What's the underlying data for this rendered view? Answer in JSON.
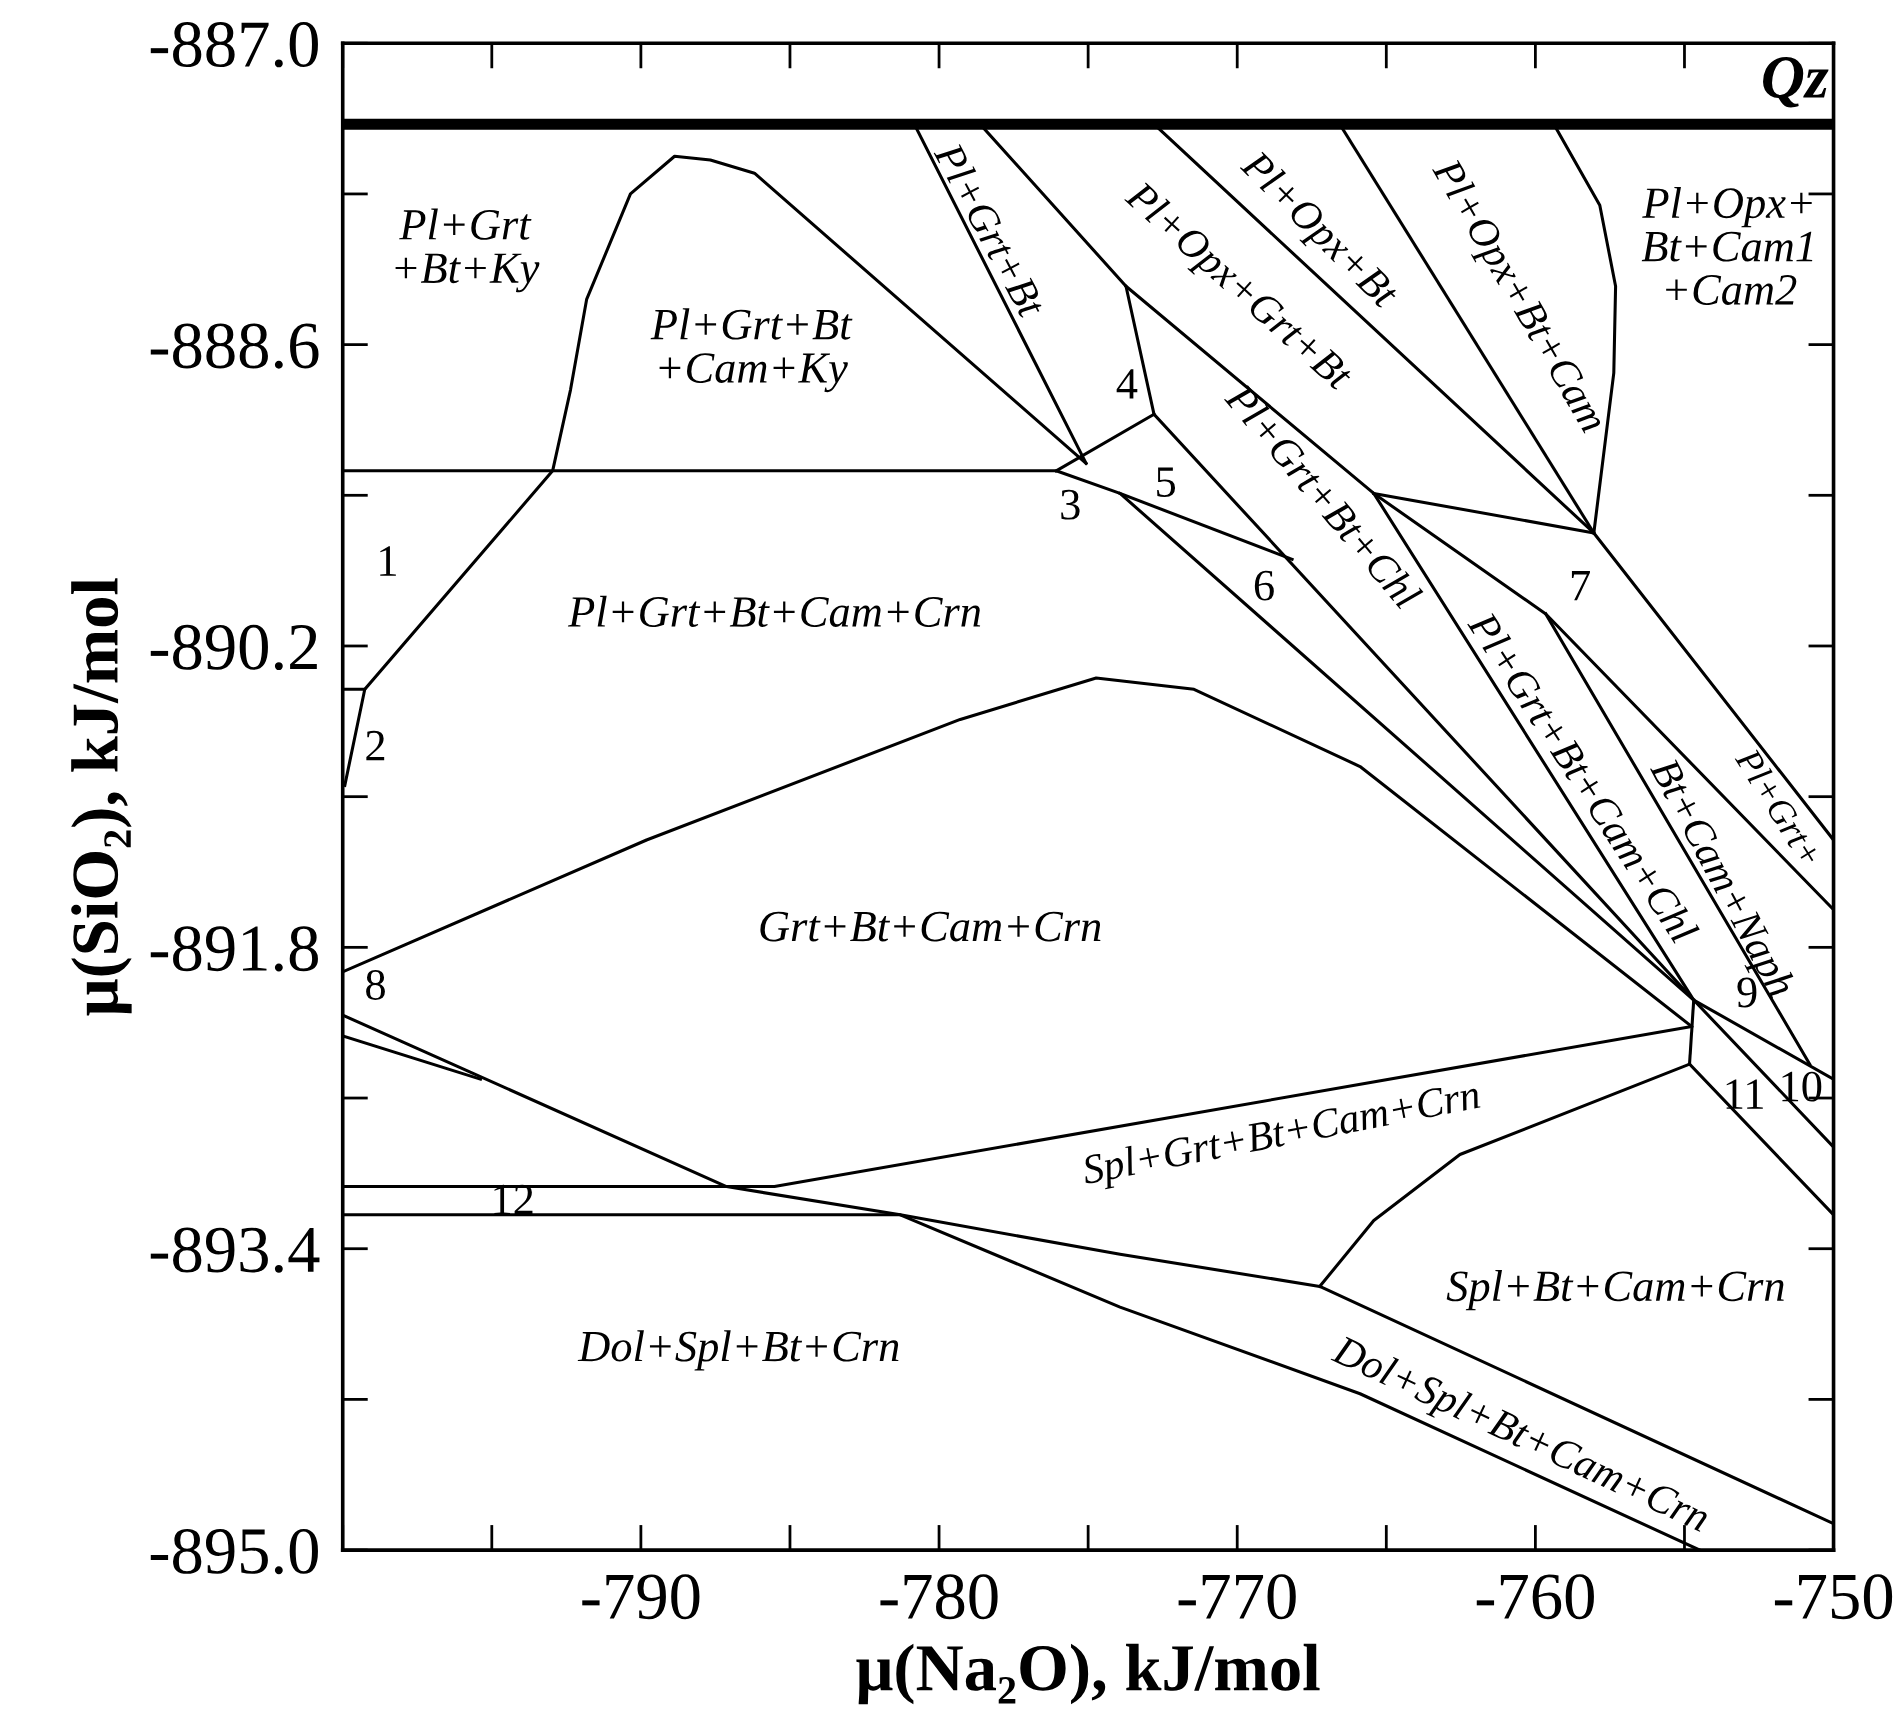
{
  "chart_data": {
    "type": "line",
    "xlabel": "μ(Na₂O), kJ/mol",
    "ylabel": "μ(SiO₂), kJ/mol",
    "xlim": [
      -800,
      -750
    ],
    "ylim": [
      -895,
      -887
    ],
    "xticks": [
      {
        "value": -800,
        "label": null
      },
      {
        "value": -795,
        "label": null
      },
      -790,
      {
        "value": -785,
        "label": null
      },
      -780,
      {
        "value": -775,
        "label": null
      },
      -770,
      {
        "value": -765,
        "label": null
      },
      -760,
      {
        "value": -755,
        "label": null
      },
      -750
    ],
    "yticks": [
      {
        "value": -895,
        "label": "-895.0"
      },
      {
        "value": -894.2,
        "label": null
      },
      -893.4,
      {
        "value": -892.6,
        "label": null
      },
      -891.8,
      {
        "value": -891.0,
        "label": null
      },
      -890.2,
      {
        "value": -889.4,
        "label": null
      },
      -888.6,
      {
        "value": -887.8,
        "label": null
      },
      {
        "value": -887,
        "label": "-887.0"
      }
    ],
    "grid": false,
    "legend": false,
    "marker": "none",
    "line_style": "solid",
    "series": [
      {
        "color": "#000000",
        "x": [
          -800,
          -750
        ],
        "values": [
          -887.43,
          -887.43
        ]
      },
      {
        "color": "#000000",
        "x": [
          -800,
          -776.07,
          -773.93,
          -754.69,
          -750
        ],
        "values": [
          -889.27,
          -889.27,
          -889.39,
          -892.08,
          -892.5
        ]
      },
      {
        "color": "#000000",
        "x": [
          -799.26,
          -792.96,
          -792.36,
          -791.82,
          -790.35,
          -788.87,
          -787.67,
          -786.19,
          -775.07
        ],
        "values": [
          -890.43,
          -889.27,
          -888.84,
          -888.36,
          -887.8,
          -887.6,
          -887.62,
          -887.69,
          -889.23
        ]
      },
      {
        "color": "#000000",
        "x": [
          -800,
          -799.26,
          -799.93
        ],
        "values": [
          -890.43,
          -890.43,
          -890.94
        ]
      },
      {
        "color": "#000000",
        "x": [
          -800,
          -789.81,
          -779.29,
          -774.73,
          -771.45,
          -765.88,
          -754.76
        ],
        "values": [
          -891.93,
          -891.23,
          -890.59,
          -890.37,
          -890.43,
          -890.84,
          -892.22
        ]
      },
      {
        "color": "#000000",
        "x": [
          -780.83,
          -775.07
        ],
        "values": [
          -887.43,
          -889.23
        ]
      },
      {
        "color": "#000000",
        "x": [
          -778.62,
          -773.73,
          -772.79
        ],
        "values": [
          -887.43,
          -888.29,
          -888.97
        ]
      },
      {
        "color": "#000000",
        "x": [
          -776.07,
          -772.79
        ],
        "values": [
          -889.27,
          -888.97
        ]
      },
      {
        "color": "#000000",
        "x": [
          -772.79,
          -754.69,
          -750
        ],
        "values": [
          -888.97,
          -892.08,
          -892.86
        ]
      },
      {
        "color": "#000000",
        "x": [
          -773.93,
          -768.16
        ],
        "values": [
          -889.39,
          -889.74
        ]
      },
      {
        "color": "#000000",
        "x": [
          -773.73,
          -765.42,
          -754.69
        ],
        "values": [
          -888.29,
          -889.39,
          -892.08
        ]
      },
      {
        "color": "#000000",
        "x": [
          -772.79,
          -758.04,
          -750
        ],
        "values": [
          -887.43,
          -889.6,
          -891.23
        ]
      },
      {
        "color": "#000000",
        "x": [
          -766.56,
          -758.04
        ],
        "values": [
          -887.43,
          -889.6
        ]
      },
      {
        "color": "#000000",
        "x": [
          -759.38,
          -757.84,
          -757.31,
          -757.37,
          -758.04
        ],
        "values": [
          -887.43,
          -887.86,
          -888.29,
          -888.75,
          -889.6
        ]
      },
      {
        "color": "#000000",
        "x": [
          -765.42,
          -758.04
        ],
        "values": [
          -889.39,
          -889.6
        ]
      },
      {
        "color": "#000000",
        "x": [
          -765.42,
          -759.65,
          -750
        ],
        "values": [
          -889.39,
          -890.03,
          -891.6
        ]
      },
      {
        "color": "#000000",
        "x": [
          -759.65,
          -750.8
        ],
        "values": [
          -890.03,
          -892.42
        ]
      },
      {
        "color": "#000000",
        "x": [
          -754.69,
          -754.83
        ],
        "values": [
          -892.08,
          -892.42
        ]
      },
      {
        "color": "#000000",
        "x": [
          -754.83,
          -750
        ],
        "values": [
          -892.42,
          -893.22
        ]
      },
      {
        "color": "#000000",
        "x": [
          -800,
          -787.13,
          -781.3,
          -773.93,
          -765.88,
          -754.49
        ],
        "values": [
          -892.16,
          -893.07,
          -893.22,
          -893.71,
          -894.17,
          -895.0
        ]
      },
      {
        "color": "#000000",
        "x": [
          -800,
          -795.38
        ],
        "values": [
          -892.27,
          -892.5
        ]
      },
      {
        "color": "#000000",
        "x": [
          -800,
          -785.52,
          -754.76
        ],
        "values": [
          -893.07,
          -893.07,
          -892.22
        ]
      },
      {
        "color": "#000000",
        "x": [
          -800,
          -781.3,
          -773.93,
          -767.23,
          -750
        ],
        "values": [
          -893.22,
          -893.22,
          -893.43,
          -893.6,
          -894.86
        ]
      },
      {
        "color": "#000000",
        "x": [
          -754.83,
          -762.53,
          -765.42,
          -767.23
        ],
        "values": [
          -892.42,
          -892.9,
          -893.25,
          -893.6
        ]
      }
    ],
    "annotations": [
      "Qz",
      "Pl+Grt\n+Bt+Ky",
      "Pl+Grt+Bt\n+Cam+Ky",
      "Pl+Opx+\nBt+Cam1\n+Cam2",
      "Pl+Grt+Bt",
      "Pl+Opx+Grt+Bt",
      "Pl+Opx+Bt",
      "Pl+Opx+Bt+Cam",
      "Pl+Grt+Bt+Chl",
      "Pl+Grt+Bt+Cam+Chl",
      "Bt+Cam+Naph",
      "Pl+Grt+",
      "Pl+Grt+Bt+Cam+Crn",
      "Grt+Bt+Cam+Crn",
      "Spl+Grt+Bt+Cam+Crn",
      "Spl+Bt+Cam+Crn",
      "Dol+Spl+Bt+Crn",
      "Dol+Spl+Bt+Cam+Crn",
      "1",
      "2",
      "3",
      "4",
      "5",
      "6",
      "7",
      "8",
      "9",
      "10",
      "11",
      "12"
    ]
  }
}
